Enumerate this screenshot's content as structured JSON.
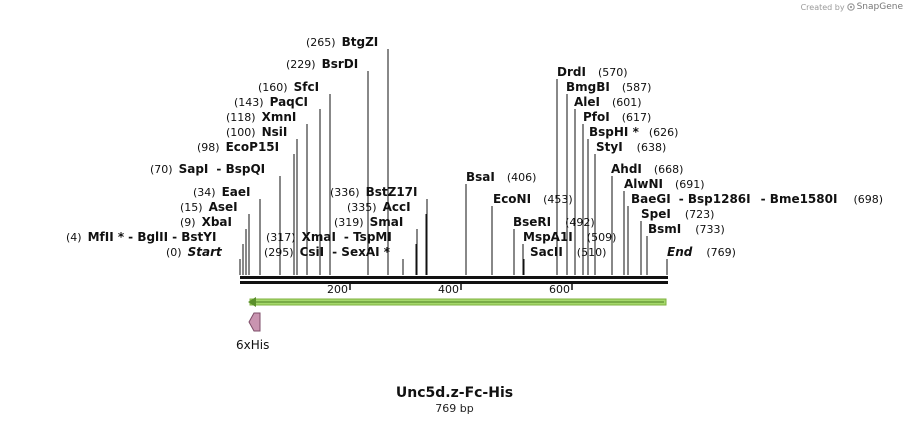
{
  "credit": {
    "prefix": "Created by",
    "brand": "SnapGene",
    "logo_icon": "snapgene-logo-icon"
  },
  "plasmid": {
    "name": "Unc5d.z-Fc-His",
    "length": "769 bp"
  },
  "ruler": {
    "ticks": [
      "200",
      "400",
      "600"
    ]
  },
  "feature": {
    "label": "6xHis"
  },
  "enzymes": [
    {
      "pos": "(265)",
      "name": "BtgZI",
      "pos_after": false
    },
    {
      "pos": "(229)",
      "name": "BsrDI",
      "pos_after": false
    },
    {
      "pos": "(160)",
      "name": "SfcI",
      "pos_after": false
    },
    {
      "pos": "(143)",
      "name": "PaqCI",
      "pos_after": false
    },
    {
      "pos": "(118)",
      "name": "XmnI",
      "pos_after": false
    },
    {
      "pos": "(100)",
      "name": "NsiI",
      "pos_after": false
    },
    {
      "pos": "(98)",
      "name": "EcoP15I",
      "pos_after": false
    },
    {
      "pos": "(70)",
      "name": "SapI",
      "name2": "BspQI",
      "pos_after": false
    },
    {
      "pos": "(34)",
      "name": "EaeI",
      "pos_after": false
    },
    {
      "pos": "(15)",
      "name": "AseI",
      "pos_after": false
    },
    {
      "pos": "(9)",
      "name": "XbaI",
      "pos_after": false
    },
    {
      "pos": "(4)",
      "name": "MfII *",
      "name2": "BglII",
      "name3": "BstYI",
      "pos_after": false
    },
    {
      "pos": "(0)",
      "name": "Start",
      "italic": true,
      "pos_after": false
    },
    {
      "pos": "(336)",
      "name": "BstZ17I",
      "pos_after": false
    },
    {
      "pos": "(335)",
      "name": "AccI",
      "pos_after": false
    },
    {
      "pos": "(319)",
      "name": "SmaI",
      "pos_after": false
    },
    {
      "pos": "(317)",
      "name": "XmaI",
      "name2": "TspMI",
      "pos_after": false
    },
    {
      "pos": "(295)",
      "name": "CsiI",
      "name2": "SexAI *",
      "pos_after": false
    },
    {
      "pos": "(406)",
      "name": "BsaI",
      "pos_after": true
    },
    {
      "pos": "(453)",
      "name": "EcoNI",
      "pos_after": true
    },
    {
      "pos": "(492)",
      "name": "BseRI",
      "pos_after": true
    },
    {
      "pos": "(509)",
      "name": "MspA1I",
      "pos_after": true
    },
    {
      "pos": "(510)",
      "name": "SacII",
      "pos_after": true
    },
    {
      "pos": "(570)",
      "name": "DrdI",
      "pos_after": true
    },
    {
      "pos": "(587)",
      "name": "BmgBI",
      "pos_after": true
    },
    {
      "pos": "(601)",
      "name": "AleI",
      "pos_after": true
    },
    {
      "pos": "(617)",
      "name": "PfoI",
      "pos_after": true
    },
    {
      "pos": "(626)",
      "name": "BspHI *",
      "pos_after": true
    },
    {
      "pos": "(638)",
      "name": "StyI",
      "pos_after": true
    },
    {
      "pos": "(668)",
      "name": "AhdI",
      "pos_after": true
    },
    {
      "pos": "(691)",
      "name": "AlwNI",
      "pos_after": true
    },
    {
      "pos": "(698)",
      "name": "BaeGI",
      "name2": "Bsp1286I",
      "name3": "Bme1580I",
      "pos_after": true
    },
    {
      "pos": "(723)",
      "name": "SpeI",
      "pos_after": true
    },
    {
      "pos": "(733)",
      "name": "BsmI",
      "pos_after": true
    },
    {
      "pos": "(769)",
      "name": "End",
      "italic": true,
      "pos_after": true
    }
  ]
}
